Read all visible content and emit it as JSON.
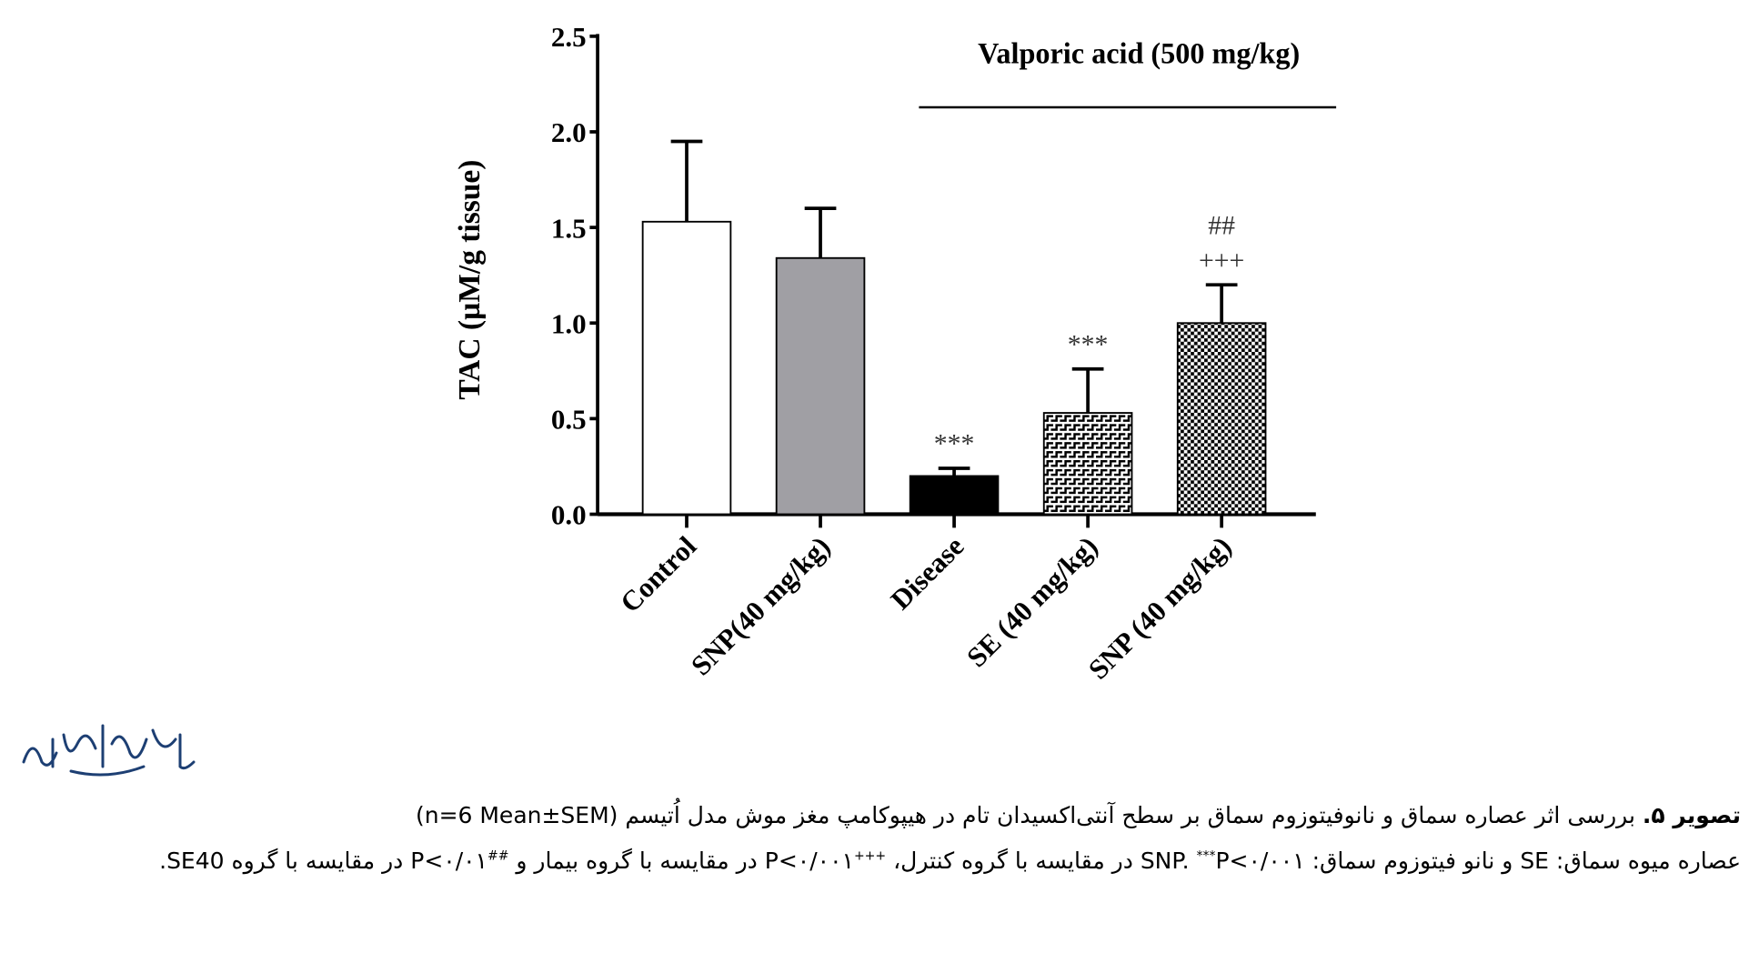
{
  "chart_data": {
    "type": "bar",
    "title": "Valporic acid (500 mg/kg)",
    "xlabel": "",
    "ylabel": "TAC (µM/g tissue)",
    "ylim": [
      0,
      2.5
    ],
    "yticks": [
      "0.0",
      "0.5",
      "1.0",
      "1.5",
      "2.0",
      "2.5"
    ],
    "categories": [
      "Control",
      "SNP(40 mg/kg)",
      "Disease",
      "SE (40 mg/kg)",
      "SNP (40 mg/kg)"
    ],
    "values": [
      1.53,
      1.34,
      0.2,
      0.53,
      1.0
    ],
    "errors": [
      0.42,
      0.26,
      0.04,
      0.23,
      0.2
    ],
    "fills": [
      "#ffffff",
      "#a09fa4",
      "#000000",
      "pattern-bricks",
      "pattern-checker"
    ],
    "annotations": [
      {
        "category": "Disease",
        "lines": [
          "***"
        ]
      },
      {
        "category": "SE (40 mg/kg)",
        "lines": [
          "***"
        ]
      },
      {
        "category": "SNP (40 mg/kg)",
        "lines": [
          "##",
          "+++"
        ]
      }
    ],
    "bracket_from": "Disease",
    "bracket_to": "SNP (40 mg/kg)",
    "grid": false
  },
  "logo_text": "مجله دانشگاه علوم پزشکی گیلان",
  "caption": {
    "label": "تصویر ۵.",
    "line1": " بررسی اثر عصاره سماق و نانوفیتوزوم سماق بر سطح آنتی‌اکسیدان تام در هیپوکامپ مغز موش مدل اُتیسم (n=6 Mean±SEM)",
    "part1": "عصاره میوه سماق: SE و نانو فیتوزوم سماق: SNP. ",
    "sup1": "***",
    "part2": "P<۰/۰۰۱ در مقایسه با گروه کنترل، ",
    "sup2": "+++",
    "part3": "P<۰/۰۰۱ در مقایسه با گروه بیمار و ",
    "sup3": "##",
    "part4": "P<۰/۰۱ در مقایسه با گروه SE40."
  }
}
